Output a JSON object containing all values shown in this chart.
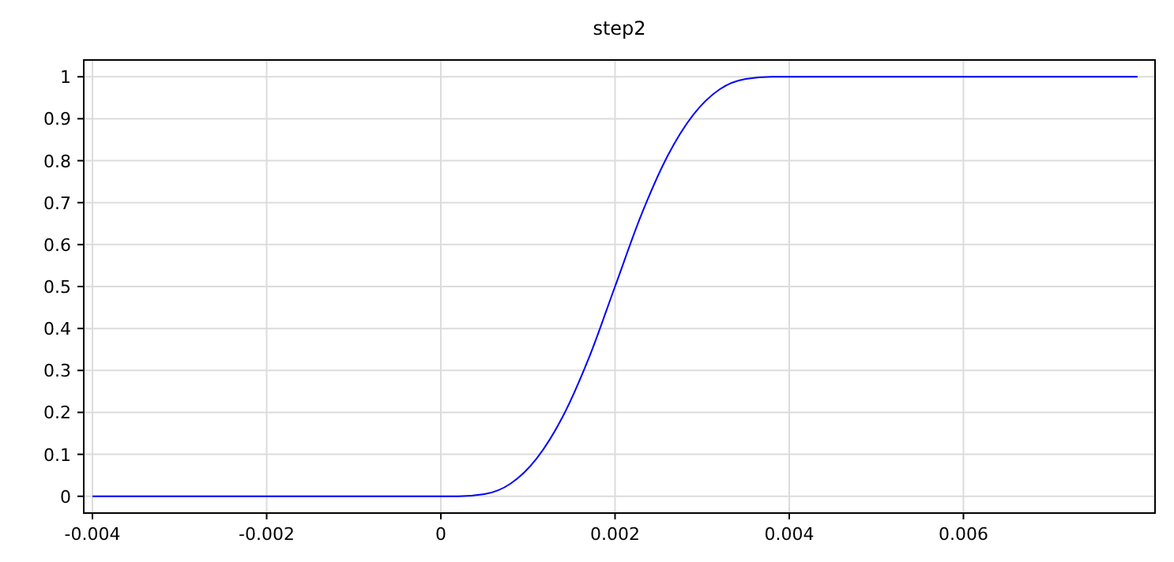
{
  "chart_data": {
    "type": "line",
    "title": "step2",
    "x": [
      -0.004,
      0.0002,
      0.0005,
      0.0008,
      0.0011,
      0.0014,
      0.0017,
      0.002,
      0.0023,
      0.0026,
      0.0029,
      0.0032,
      0.0035,
      0.0038,
      0.008
    ],
    "series": [
      {
        "color": "#0000ff",
        "values": [
          0,
          0,
          0.005,
          0.03,
          0.09,
          0.19,
          0.33,
          0.5,
          0.67,
          0.81,
          0.91,
          0.97,
          0.995,
          1,
          1
        ]
      }
    ],
    "xlim": [
      -0.0041,
      0.0082
    ],
    "ylim": [
      -0.04,
      1.04
    ],
    "xticks": [
      -0.004,
      -0.002,
      0,
      0.002,
      0.004,
      0.006
    ],
    "yticks": [
      0,
      0.1,
      0.2,
      0.3,
      0.4,
      0.5,
      0.6,
      0.7,
      0.8,
      0.9,
      1
    ],
    "grid": true,
    "marker": "none",
    "line_style": "solid"
  }
}
